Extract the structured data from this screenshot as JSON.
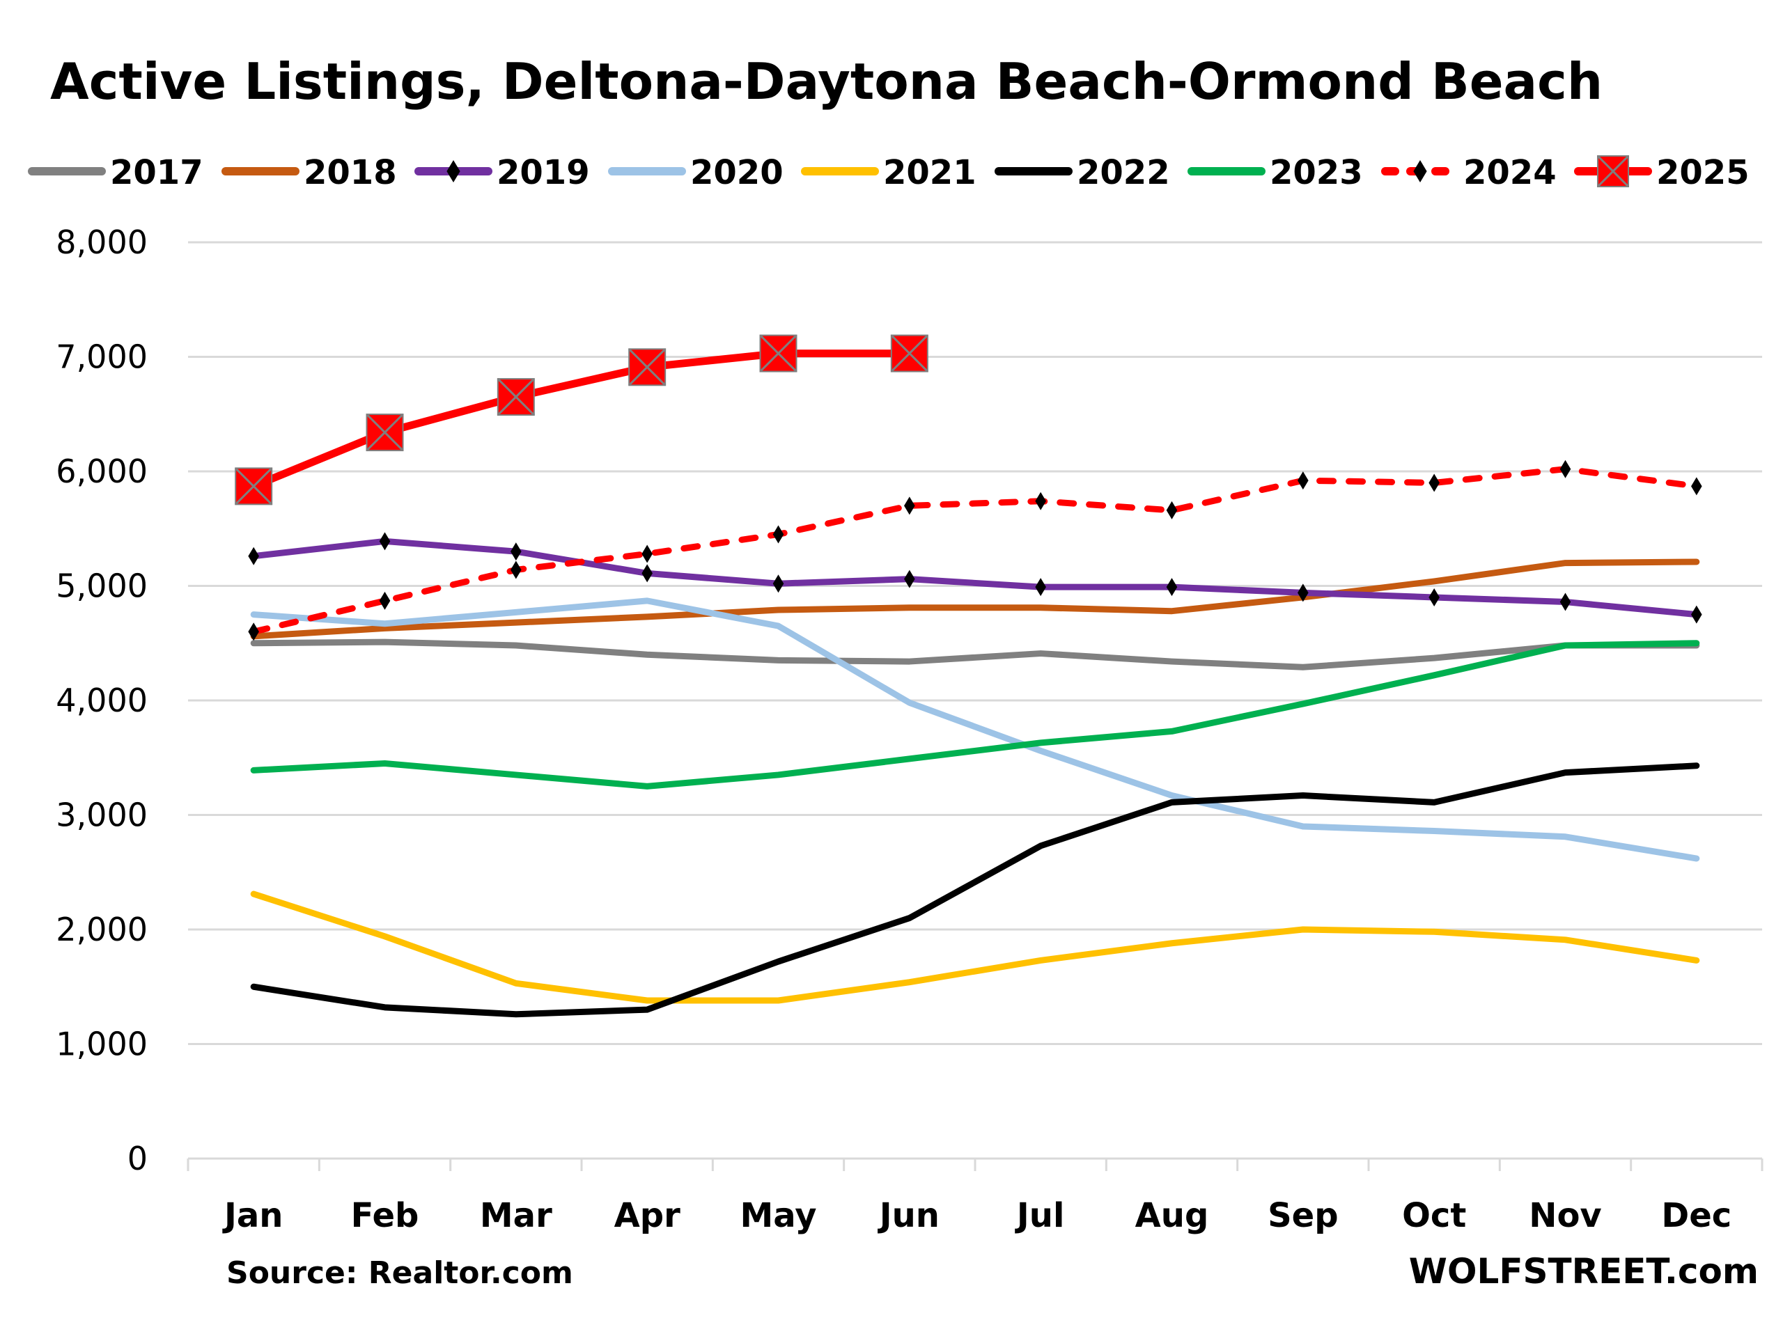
{
  "chart_data": {
    "type": "line",
    "title": "Active Listings, Deltona-Daytona Beach-Ormond Beach",
    "xlabel": "",
    "ylabel": "",
    "categories": [
      "Jan",
      "Feb",
      "Mar",
      "Apr",
      "May",
      "Jun",
      "Jul",
      "Aug",
      "Sep",
      "Oct",
      "Nov",
      "Dec"
    ],
    "ylim": [
      0,
      8000
    ],
    "yticks": [
      0,
      1000,
      2000,
      3000,
      4000,
      5000,
      6000,
      7000,
      8000
    ],
    "ytick_labels": [
      "0",
      "1,000",
      "2,000",
      "3,000",
      "4,000",
      "5,000",
      "6,000",
      "7,000",
      "8,000"
    ],
    "grid": true,
    "legend_position": "top",
    "series": [
      {
        "name": "2017",
        "color": "#808080",
        "style": "solid",
        "marker": "none",
        "values": [
          4500,
          4510,
          4480,
          4400,
          4350,
          4340,
          4410,
          4340,
          4290,
          4370,
          4480,
          4480
        ]
      },
      {
        "name": "2018",
        "color": "#C55A11",
        "style": "solid",
        "marker": "none",
        "values": [
          4560,
          4630,
          4680,
          4730,
          4790,
          4810,
          4810,
          4780,
          4900,
          5040,
          5200,
          5210
        ]
      },
      {
        "name": "2019",
        "color": "#7030A0",
        "style": "solid",
        "marker": "diamond",
        "values": [
          5260,
          5390,
          5300,
          5110,
          5020,
          5060,
          4990,
          4990,
          4940,
          4900,
          4860,
          4750
        ]
      },
      {
        "name": "2020",
        "color": "#9DC3E6",
        "style": "solid",
        "marker": "none",
        "values": [
          4750,
          4670,
          4770,
          4870,
          4650,
          3980,
          3560,
          3170,
          2900,
          2860,
          2810,
          2620
        ]
      },
      {
        "name": "2021",
        "color": "#FFC000",
        "style": "solid",
        "marker": "none",
        "values": [
          2310,
          1940,
          1530,
          1380,
          1380,
          1540,
          1730,
          1880,
          2000,
          1980,
          1910,
          1730
        ]
      },
      {
        "name": "2022",
        "color": "#000000",
        "style": "solid",
        "marker": "none",
        "values": [
          1500,
          1320,
          1260,
          1300,
          1720,
          2100,
          2730,
          3110,
          3170,
          3110,
          3370,
          3430
        ]
      },
      {
        "name": "2023",
        "color": "#00B050",
        "style": "solid",
        "marker": "none",
        "values": [
          3390,
          3450,
          3350,
          3250,
          3350,
          3490,
          3630,
          3730,
          3970,
          4220,
          4480,
          4500
        ]
      },
      {
        "name": "2024",
        "color": "#FF0000",
        "style": "dotted",
        "marker": "diamond",
        "values": [
          4600,
          4870,
          5140,
          5280,
          5450,
          5700,
          5740,
          5660,
          5920,
          5900,
          6020,
          5870
        ]
      },
      {
        "name": "2025",
        "color": "#FF0000",
        "style": "solid",
        "marker": "square-x",
        "values": [
          5870,
          6340,
          6650,
          6910,
          7030,
          7030
        ]
      }
    ],
    "annotations": {
      "source": "Source: Realtor.com",
      "brand": "WOLFSTREET.com"
    }
  }
}
